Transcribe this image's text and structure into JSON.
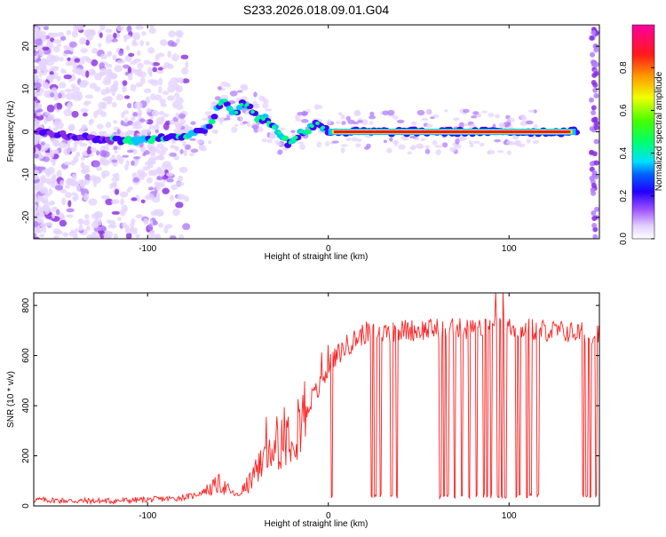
{
  "title": "S233.2026.018.09.01.G04",
  "chart_data": [
    {
      "type": "heatmap",
      "title": "S233.2026.018.09.01.G04",
      "xlabel": "Height of straight line (km)",
      "ylabel": "Frequency (Hz)",
      "xlim": [
        -163,
        150
      ],
      "ylim": [
        -25,
        25
      ],
      "xticks": [
        -100,
        0,
        100
      ],
      "yticks": [
        -20,
        -10,
        0,
        10,
        20
      ],
      "ridge_frequency": {
        "x": [
          -160,
          -140,
          -120,
          -100,
          -90,
          -80,
          -70,
          -65,
          -62,
          -58,
          -55,
          -52,
          -50,
          -47,
          -44,
          -41,
          -38,
          -35,
          -30,
          -25,
          -22,
          -20,
          -17,
          -15,
          -12,
          -10,
          -7,
          -5,
          -3,
          0,
          5,
          10,
          20,
          40,
          60,
          80,
          100,
          120,
          140
        ],
        "y": [
          0,
          -1,
          -2,
          -2,
          -1,
          -1,
          0,
          2,
          5,
          8,
          6,
          4,
          5,
          7,
          6,
          4,
          3,
          3,
          1,
          -1,
          -3,
          -2,
          -1,
          0,
          0,
          1,
          2,
          2,
          1,
          0,
          0,
          0,
          0,
          0,
          0,
          0,
          0,
          0,
          0
        ]
      },
      "colorbar": {
        "label": "Normalized spectral amplitude",
        "range": [
          0.0,
          1.0
        ],
        "ticks": [
          "0.0",
          "0.2",
          "0.4",
          "0.6",
          "0.8"
        ]
      },
      "colors": [
        "#ffffff",
        "#e5d3ff",
        "#b27dff",
        "#8a2be2",
        "#3f00ff",
        "#0033ff",
        "#00c8ff",
        "#00ff80",
        "#66ff00",
        "#ffee00",
        "#ff8800",
        "#ff0033",
        "#ff00aa"
      ]
    },
    {
      "type": "line",
      "xlabel": "Height of straight line (km)",
      "ylabel": "SNR (10 * v/v)",
      "xlim": [
        -163,
        150
      ],
      "ylim": [
        0,
        850
      ],
      "xticks": [
        -100,
        0,
        100
      ],
      "yticks": [
        0,
        200,
        400,
        600,
        800
      ],
      "series": [
        {
          "color": "#ff2020",
          "trend": {
            "x": [
              -163,
              -140,
              -120,
              -100,
              -85,
              -75,
              -65,
              -60,
              -55,
              -50,
              -45,
              -40,
              -35,
              -30,
              -25,
              -20,
              -15,
              -10,
              -5,
              0,
              5,
              10,
              20,
              40,
              60,
              80,
              100,
              120,
              140,
              150
            ],
            "y": [
              25,
              20,
              20,
              25,
              30,
              40,
              70,
              90,
              60,
              40,
              80,
              130,
              190,
              230,
              280,
              310,
              350,
              420,
              470,
              550,
              600,
              640,
              690,
              700,
              705,
              705,
              710,
              700,
              690,
              680
            ]
          },
          "dropouts_x": [
            2,
            24,
            26,
            29,
            35,
            38,
            62,
            64,
            66,
            70,
            74,
            78,
            82,
            86,
            88,
            90,
            94,
            96,
            98,
            104,
            106,
            110,
            112,
            116,
            141,
            143,
            145,
            148
          ]
        }
      ]
    }
  ]
}
